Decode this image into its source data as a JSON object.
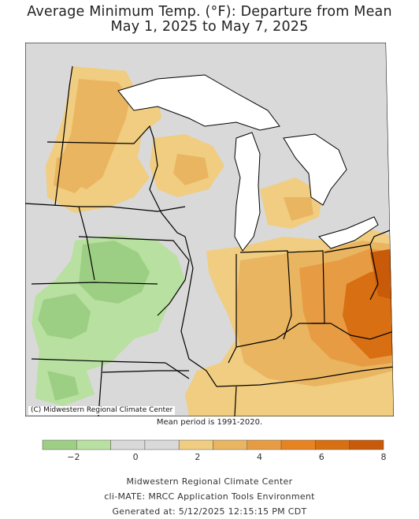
{
  "title": {
    "line1": "Average Minimum Temp. (°F): Departure from Mean",
    "line2": "May 1, 2025 to May 7, 2025"
  },
  "copyright": "(C) Midwestern Regional Climate Center",
  "mean_period": "Mean period is 1991-2020.",
  "legend": {
    "colors": [
      "#9ccf84",
      "#b8e0a0",
      "#d9d9d9",
      "#d9d9d9",
      "#f0cd80",
      "#eab561",
      "#e79c43",
      "#e68421",
      "#d86f12",
      "#c85a09"
    ],
    "tick_labels": [
      {
        "value": -2,
        "label": "−2"
      },
      {
        "value": 0,
        "label": "0"
      },
      {
        "value": 2,
        "label": "2"
      },
      {
        "value": 4,
        "label": "4"
      },
      {
        "value": 6,
        "label": "6"
      },
      {
        "value": 8,
        "label": "8"
      }
    ],
    "range": [
      -3,
      8
    ]
  },
  "map_colors": {
    "background": "#d9d9d9",
    "green_light": "#b8e0a0",
    "green_dark": "#9ccf84",
    "orange_light": "#f0cd80",
    "orange_mid": "#eab561",
    "orange_strong": "#e79c43",
    "orange_deep": "#d86f12",
    "lake": "#ffffff"
  },
  "footer": {
    "line1": "Midwestern Regional Climate Center",
    "line2": "cli-MATE: MRCC Application Tools Environment",
    "line3": "Generated at: 5/12/2025 12:15:15 PM CDT"
  }
}
